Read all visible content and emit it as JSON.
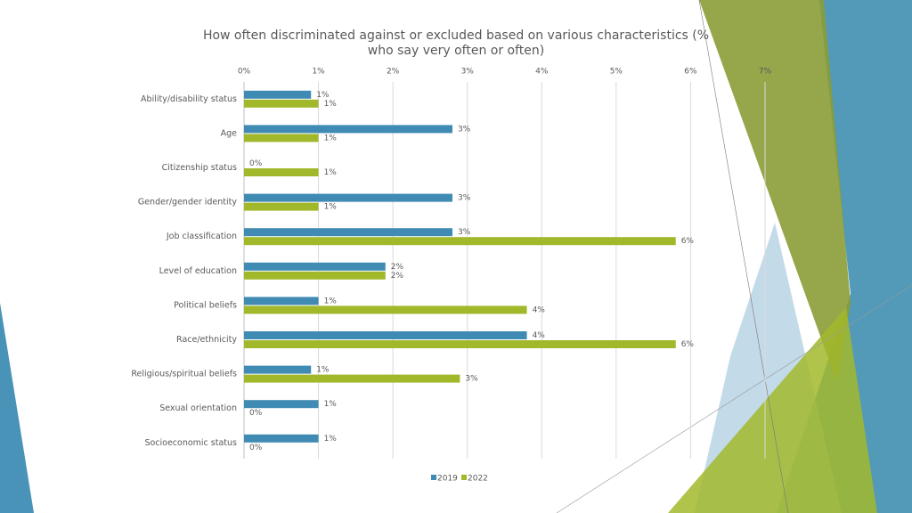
{
  "chart_data": {
    "type": "hbar",
    "title": "How often discriminated against or excluded based on various characteristics (% who say very often or often)",
    "categories": [
      "Ability/disability status",
      "Age",
      "Citizenship status",
      "Gender/gender identity",
      "Job classification",
      "Level of education",
      "Political beliefs",
      "Race/ethnicity",
      "Religious/spiritual beliefs",
      "Sexual orientation",
      "Socioeconomic status"
    ],
    "series": [
      {
        "name": "2019",
        "color": "#3f8bb4",
        "values": [
          0.9,
          2.8,
          0,
          2.8,
          2.8,
          1.9,
          1.0,
          3.8,
          0.9,
          1.0,
          1.0
        ],
        "value_labels": [
          "1%",
          "3%",
          "0%",
          "3%",
          "3%",
          "2%",
          "1%",
          "4%",
          "1%",
          "1%",
          "1%"
        ]
      },
      {
        "name": "2022",
        "color": "#a2b82b",
        "values": [
          1.0,
          1.0,
          1.0,
          1.0,
          5.8,
          1.9,
          3.8,
          5.8,
          2.9,
          0,
          0
        ],
        "value_labels": [
          "1%",
          "1%",
          "1%",
          "1%",
          "6%",
          "2%",
          "4%",
          "6%",
          "3%",
          "0%",
          "0%"
        ]
      }
    ],
    "xlim": [
      0,
      7
    ],
    "xticks": [
      {
        "value": 0,
        "label": "0%"
      },
      {
        "value": 1,
        "label": "1%"
      },
      {
        "value": 2,
        "label": "2%"
      },
      {
        "value": 3,
        "label": "3%"
      },
      {
        "value": 4,
        "label": "4%"
      },
      {
        "value": 5,
        "label": "5%"
      },
      {
        "value": 6,
        "label": "6%"
      },
      {
        "value": 7,
        "label": "7%"
      }
    ],
    "grid": true,
    "legend": "bottom"
  }
}
